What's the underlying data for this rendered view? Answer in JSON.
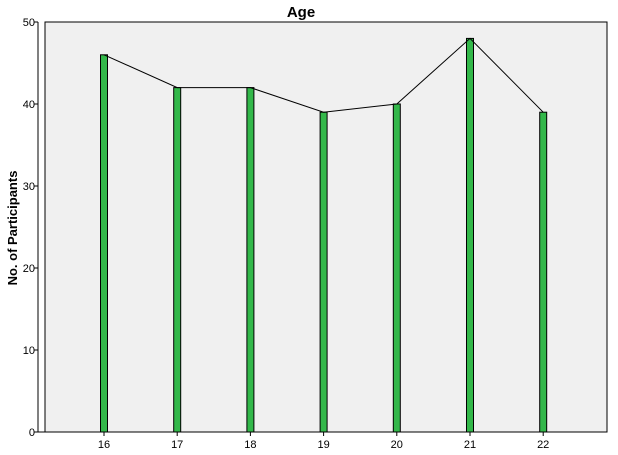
{
  "chart_data": {
    "type": "bar",
    "title": "Age",
    "xlabel": "",
    "ylabel": "No. of Participants",
    "categories": [
      "16",
      "17",
      "18",
      "19",
      "20",
      "21",
      "22"
    ],
    "values": [
      46,
      42,
      42,
      39,
      40,
      48,
      39
    ],
    "ylim": [
      0,
      50
    ],
    "yticks": [
      "0",
      "10",
      "20",
      "30",
      "40",
      "50"
    ],
    "overlay": "line connecting bar tops",
    "grid": false,
    "legend": "none",
    "colors": {
      "bar_fill": "#33b84a",
      "bar_stroke": "#000000",
      "plot_background": "#f0f0f0",
      "line": "#000000"
    }
  }
}
